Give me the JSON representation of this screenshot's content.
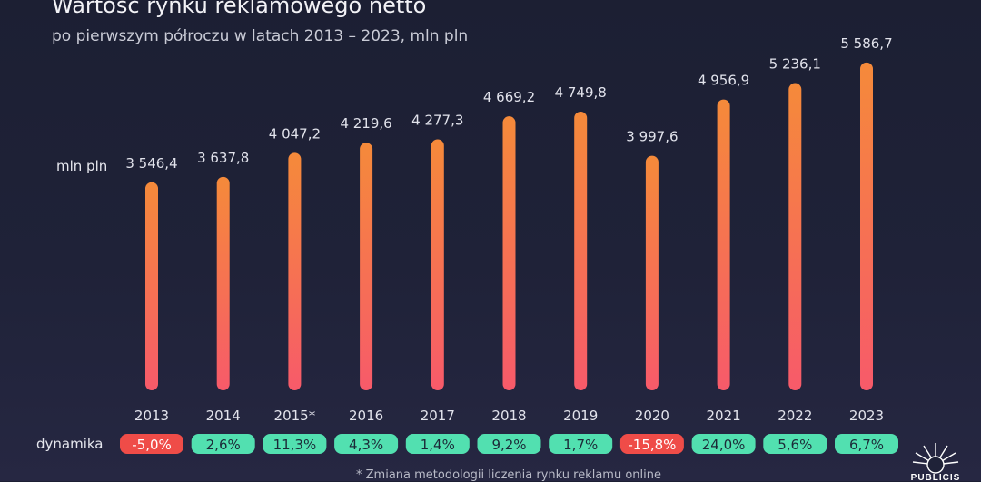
{
  "title": "Wartość rynku reklamowego netto",
  "subtitle": "po pierwszym półroczu w latach 2013 – 2023, mln pln",
  "unit_label": "mln pln",
  "dynamics_label": "dynamika",
  "footnote": "* Zmiana metodologii liczenia rynku reklamu online",
  "logo_text": "PUBLICIS",
  "colors": {
    "bar_top": "#f58a3a",
    "bar_bottom": "#f75a6a",
    "badge_positive": "#52e0b0",
    "badge_negative": "#ef4c48",
    "badge_positive_text": "#1c2a38",
    "badge_negative_text": "#ffffff"
  },
  "chart_data": {
    "type": "bar",
    "categories": [
      "2013",
      "2014",
      "2015*",
      "2016",
      "2017",
      "2018",
      "2019",
      "2020",
      "2021",
      "2022",
      "2023"
    ],
    "values": [
      3546.4,
      3637.8,
      4047.2,
      4219.6,
      4277.3,
      4669.2,
      4749.8,
      3997.6,
      4956.9,
      5236.1,
      5586.7
    ],
    "value_labels": [
      "3 546,4",
      "3 637,8",
      "4 047,2",
      "4 219,6",
      "4 277,3",
      "4 669,2",
      "4 749,8",
      "3 997,6",
      "4 956,9",
      "5 236,1",
      "5 586,7"
    ],
    "dynamics": [
      "-5,0%",
      "2,6%",
      "11,3%",
      "4,3%",
      "1,4%",
      "9,2%",
      "1,7%",
      "-15,8%",
      "24,0%",
      "5,6%",
      "6,7%"
    ],
    "dynamics_values": [
      -5.0,
      2.6,
      11.3,
      4.3,
      1.4,
      9.2,
      1.7,
      -15.8,
      24.0,
      5.6,
      6.7
    ],
    "title": "Wartość rynku reklamowego netto",
    "ylabel": "mln pln",
    "ylim": [
      0,
      5600
    ],
    "grid": false,
    "legend": "none"
  }
}
